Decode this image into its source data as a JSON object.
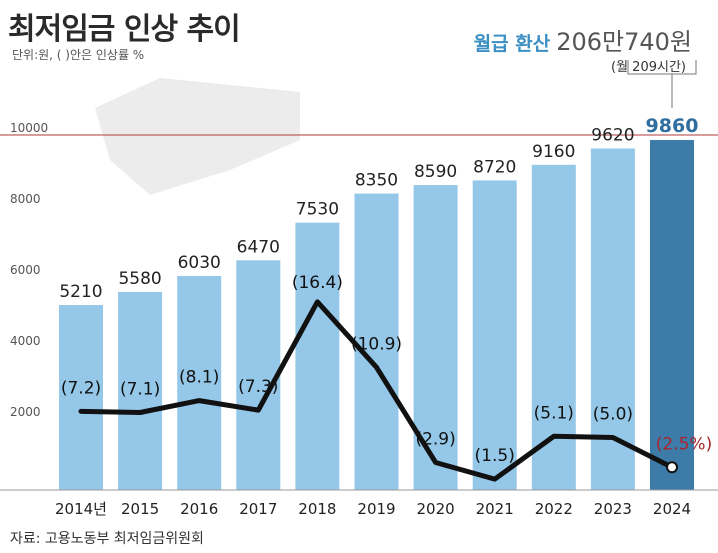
{
  "title": "최저임금 인상 추이",
  "unit_note": "단위:원, ( )안은 인상률 %",
  "monthly": {
    "label": "월급 환산",
    "value": "206만740원",
    "hours_note": "(월 209시간)"
  },
  "source": "자료: 고용노동부 최저임금위원회",
  "colors": {
    "bar": "#94c7e8",
    "bar_highlight": "#3d7ba8",
    "line": "#111111",
    "ref_line": "#b33a3a",
    "highlight_text": "#2f6e9e",
    "last_rate_text": "#a8262c"
  },
  "chart_data": {
    "type": "bar",
    "categories": [
      "2014년",
      "2015",
      "2016",
      "2017",
      "2018",
      "2019",
      "2020",
      "2021",
      "2022",
      "2023",
      "2024"
    ],
    "series": [
      {
        "values": [
          5210,
          5580,
          6030,
          6470,
          7530,
          8350,
          8590,
          8720,
          9160,
          9620,
          9860
        ]
      }
    ],
    "value_labels": [
      "5210",
      "5580",
      "6030",
      "6470",
      "7530",
      "8350",
      "8590",
      "8720",
      "9160",
      "9620",
      "9860"
    ],
    "rates": [
      7.2,
      7.1,
      8.1,
      7.3,
      16.4,
      10.9,
      2.9,
      1.5,
      5.1,
      5.0,
      2.5
    ],
    "rate_labels": [
      "(7.2)",
      "(7.1)",
      "(8.1)",
      "(7.3)",
      "(16.4)",
      "(10.9)",
      "(2.9)",
      "(1.5)",
      "(5.1)",
      "(5.0)",
      "(2.5%)"
    ],
    "yticks": [
      "2000",
      "4000",
      "6000",
      "8000",
      "10000"
    ],
    "ytick_values": [
      2000,
      4000,
      6000,
      8000,
      10000
    ],
    "ylim": [
      0,
      10000
    ],
    "reference_value": 10000,
    "highlight_index": 10,
    "grid": false
  }
}
